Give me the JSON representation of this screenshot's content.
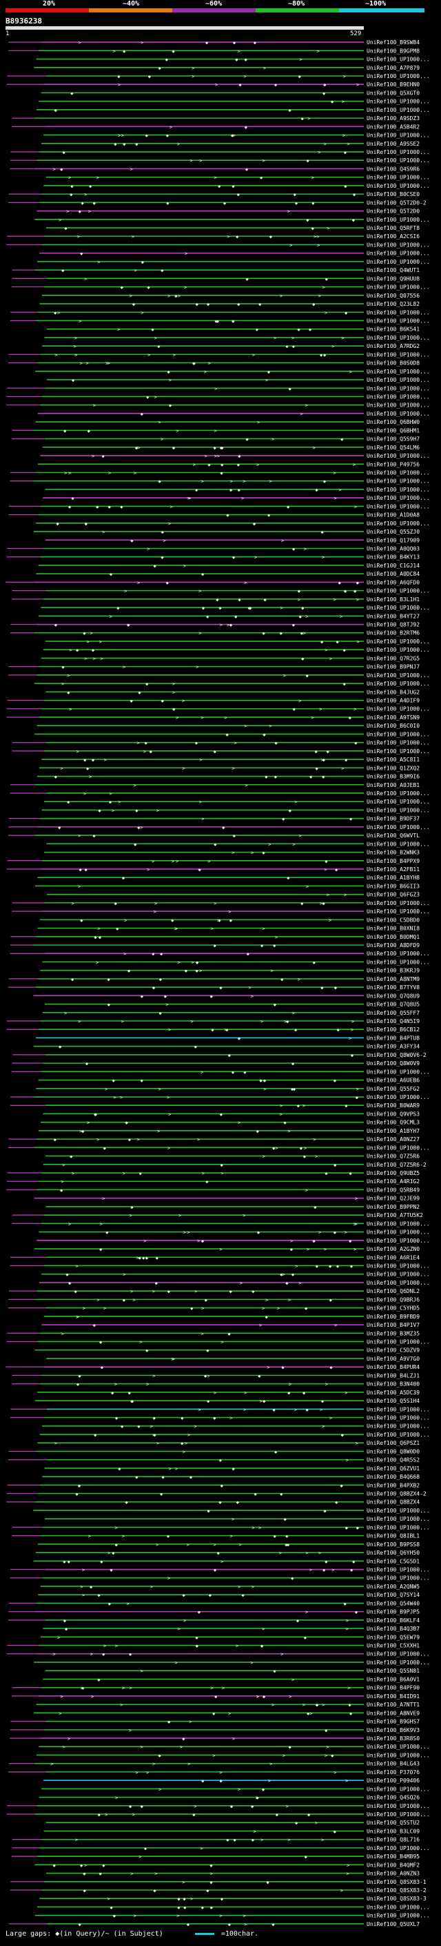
{
  "legend": {
    "labels": [
      "20%",
      "~40%",
      "~60%",
      "~80%",
      "~100%"
    ],
    "colors": [
      "#e01010",
      "#e07b10",
      "#9a2bb0",
      "#22c022",
      "#1ec8e0"
    ]
  },
  "query": {
    "id": "B8936238",
    "start": "1",
    "end": "529"
  },
  "footer": {
    "gaps": "Large gaps: ◆(in Query)/~ (in Subject)",
    "scale": "=100char."
  },
  "chart_data": {
    "type": "alignment",
    "query_range": [
      1,
      529
    ],
    "hits": [
      "UniRef100_B9SW84",
      "UniRef100_B9GPM8",
      "UniRef100_UP1000...",
      "UniRef100_A7P879",
      "UniRef100_UP1000...",
      "UniRef100_B9EHN0",
      "UniRef100_Q5XGT0",
      "UniRef100_UP1000...",
      "UniRef100_UP1000...",
      "UniRef100_A9SDZ3",
      "UniRef100_A5B4R2",
      "UniRef100_UP1000...",
      "UniRef100_A9SSE2",
      "UniRef100_UP1000...",
      "UniRef100_UP1000...",
      "UniRef100_Q4S9R6",
      "UniRef100_UP1000...",
      "UniRef100_UP1000...",
      "UniRef100_B0CSE0",
      "UniRef100_Q5T2D0-2",
      "UniRef100_Q5T2D0",
      "UniRef100_UP1000...",
      "UniRef100_Q5RFT8",
      "UniRef100_A2CSI6",
      "UniRef100_UP1000...",
      "UniRef100_UP1000...",
      "UniRef100_UP1000...",
      "UniRef100_Q4WUT1",
      "UniRef100_Q9HUU8",
      "UniRef100_UP1000...",
      "UniRef100_Q07556",
      "UniRef100_Q23L82",
      "UniRef100_UP1000...",
      "UniRef100_UP1000...",
      "UniRef100_B6K541",
      "UniRef100_UP1000...",
      "UniRef100_A7RDG2",
      "UniRef100_UP1000...",
      "UniRef100_B0S0D8",
      "UniRef100_UP1000...",
      "UniRef100_UP1000...",
      "UniRef100_UP1000...",
      "UniRef100_UP1000...",
      "UniRef100_UP1000...",
      "UniRef100_UP1000...",
      "UniRef100_Q6BHW0",
      "UniRef100_Q6BHM1",
      "UniRef100_Q5S9H7",
      "UniRef100_Q54LM6",
      "UniRef100_UP1000...",
      "UniRef100_P49756",
      "UniRef100_UP1000...",
      "UniRef100_UP1000...",
      "UniRef100_UP1000...",
      "UniRef100_UP1000...",
      "UniRef100_UP1000...",
      "UniRef100_A1D0A8",
      "UniRef100_UP1000...",
      "UniRef100_Q55ZJ0",
      "UniRef100_Q17909",
      "UniRef100_A0QQ03",
      "UniRef100_B4KY13",
      "UniRef100_C1GJ14",
      "UniRef100_A0DC84",
      "UniRef100_A6QFD0",
      "UniRef100_UP1000...",
      "UniRef100_B3L1H1",
      "UniRef100_UP1000...",
      "UniRef100_B4YT27",
      "UniRef100_Q8TJ92",
      "UniRef100_B2RTM6",
      "UniRef100_UP1000...",
      "UniRef100_UP1000...",
      "UniRef100_Q7R2G5",
      "UniRef100_B9PNJ7",
      "UniRef100_UP1000...",
      "UniRef100_UP1000...",
      "UniRef100_B4JUG2",
      "UniRef100_A4DIF9",
      "UniRef100_UP1000...",
      "UniRef100_A9TSN9",
      "UniRef100_B6C0I0",
      "UniRef100_UP1000...",
      "UniRef100_UP1000...",
      "UniRef100_UP1000...",
      "UniRef100_A5C8I1",
      "UniRef100_Q1ZXQ2",
      "UniRef100_B3M9I6",
      "UniRef100_A0JEB1",
      "UniRef100_UP1000...",
      "UniRef100_UP1000...",
      "UniRef100_UP1000...",
      "UniRef100_B9DF37",
      "UniRef100_UP1000...",
      "UniRef100_Q6WVTL",
      "UniRef100_UP1000...",
      "UniRef100_B2WNK3",
      "UniRef100_B4PPX9",
      "UniRef100_A2FB11",
      "UniRef100_A1BYH8",
      "UniRef100_B6GII3",
      "UniRef100_Q6FGZ3",
      "UniRef100_UP1000...",
      "UniRef100_UP1000...",
      "UniRef100_C5DBD0",
      "UniRef100_B0XNI8",
      "UniRef100_B0DMQ1",
      "UniRef100_A8DFD9",
      "UniRef100_UP1000...",
      "UniRef100_UP1000...",
      "UniRef100_B3KRJ9",
      "UniRef100_A8NTM9",
      "UniRef100_B7TYV8",
      "UniRef100_Q7Q8U9",
      "UniRef100_Q7Q8U5",
      "UniRef100_Q55FF7",
      "UniRef100_Q4N5I9",
      "UniRef100_B6CB12",
      "UniRef100_B4PTU8",
      "UniRef100_A3FY34",
      "UniRef100_Q8W0V6-2",
      "UniRef100_Q8W0V9",
      "UniRef100_UP1000...",
      "UniRef100_A6UEB6",
      "UniRef100_Q55FG2",
      "UniRef100_UP1000...",
      "UniRef100_B0WAR9",
      "UniRef100_Q9VPS3",
      "UniRef100_Q9CML3",
      "UniRef100_A1BYH7",
      "UniRef100_A0NZ27",
      "UniRef100_UP1000...",
      "UniRef100_Q7Z5R6",
      "UniRef100_Q7Z5R6-2",
      "UniRef100_Q9UBZ5",
      "UniRef100_A4R1G2",
      "UniRef100_Q5RB49",
      "UniRef100_Q2JE99",
      "UniRef100_B9PPN2",
      "UniRef100_A7TU5K2",
      "UniRef100_UP1000...",
      "UniRef100_UP1000...",
      "UniRef100_UP1000...",
      "UniRef100_A2GZN0",
      "UniRef100_A6R1E4",
      "UniRef100_UP1000...",
      "UniRef100_UP1000...",
      "UniRef100_UP1000...",
      "UniRef100_Q6DNL2",
      "UniRef100_Q9BRJ6",
      "UniRef100_C5YHD5",
      "UniRef100_B9FBD9",
      "UniRef100_B4P1V7",
      "UniRef100_B3MZ35",
      "UniRef100_UP1000...",
      "UniRef100_C5DZV9",
      "UniRef100_A9V7G0",
      "UniRef100_B4PUR4",
      "UniRef100_B4LZJ1",
      "UniRef100_B3N400",
      "UniRef100_A5DC39",
      "UniRef100_Q5S1H4",
      "UniRef100_UP1000...",
      "UniRef100_UP1000...",
      "UniRef100_UP1000...",
      "UniRef100_UP1000...",
      "UniRef100_Q6PSZ1",
      "UniRef100_Q8W0D0",
      "UniRef100_Q4R5S2",
      "UniRef100_Q6ZVU1",
      "UniRef100_B4Q668",
      "UniRef100_B4PXB2",
      "UniRef100_Q8BZX4-2",
      "UniRef100_Q8BZX4",
      "UniRef100_UP1000...",
      "UniRef100_UP1000...",
      "UniRef100_UP1000...",
      "UniRef100_Q8IBL1",
      "UniRef100_B9PSS8",
      "UniRef100_Q6YH50",
      "UniRef100_C5G5D1",
      "UniRef100_UP1000...",
      "UniRef100_UP1000...",
      "UniRef100_A2QNW5",
      "UniRef100_Q7SY14",
      "UniRef100_Q54W40",
      "UniRef100_B9PJP5",
      "UniRef100_B6KLF4",
      "UniRef100_B4Q3B7",
      "UniRef100_Q5EW79",
      "UniRef100_C5XXH1",
      "UniRef100_UP1000...",
      "UniRef100_UP1000...",
      "UniRef100_Q5SN81",
      "UniRef100_B6A0V1",
      "UniRef100_B4PF90",
      "UniRef100_B4ID91",
      "UniRef100_A7NTT1",
      "UniRef100_A8NVE9",
      "UniRef100_B9GHS7",
      "UniRef100_B6K9V3",
      "UniRef100_B3R8S0",
      "UniRef100_UP1000...",
      "UniRef100_UP1000...",
      "UniRef100_B4LG43",
      "UniRef100_P37076",
      "UniRef100_P09406",
      "UniRef100_UP1000...",
      "UniRef100_Q4SQ26",
      "UniRef100_UP1000...",
      "UniRef100_UP1000...",
      "UniRef100_Q5STU2",
      "UniRef100_B3LC09",
      "UniRef100_Q8L716",
      "UniRef100_UP1000...",
      "UniRef100_B4MB95",
      "UniRef100_B4QMF2",
      "UniRef100_A0NZN3",
      "UniRef100_Q8SX83-1",
      "UniRef100_Q8SX83-2",
      "UniRef100_Q8SX83-3",
      "UniRef100_UP1000...",
      "UniRef100_UP1000...",
      "UniRef100_Q5UXL7"
    ]
  }
}
